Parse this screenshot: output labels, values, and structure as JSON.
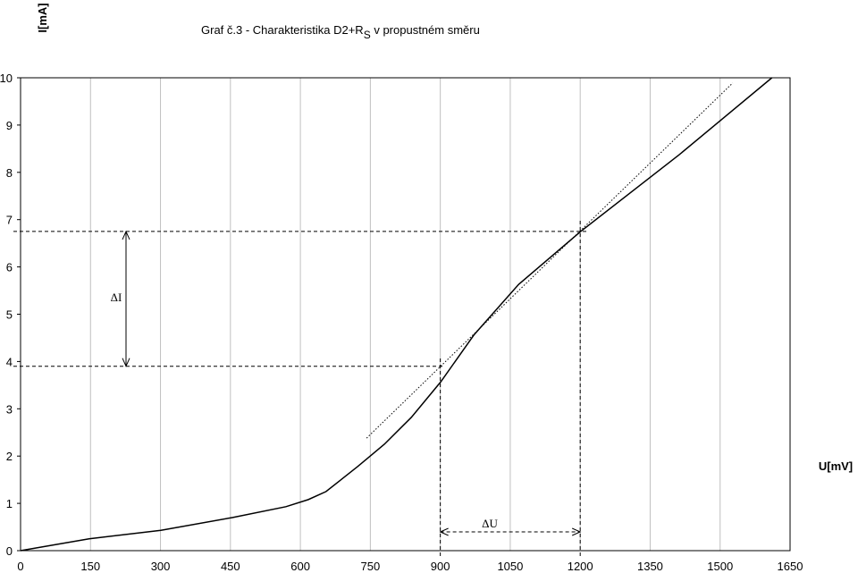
{
  "chart_data": {
    "type": "line",
    "title": [
      "Graf č.3 - Charakteristika D2+R",
      "S",
      " v propustném směru"
    ],
    "y_label": "I[mA]",
    "x_label": "U[mV]",
    "x": [
      0,
      147,
      301,
      454,
      569,
      617,
      655,
      723,
      780,
      838,
      901,
      972,
      1068,
      1201,
      1412,
      1611
    ],
    "series": [
      {
        "color": "#000000",
        "values": [
          0,
          0.25,
          0.43,
          0.7,
          0.93,
          1.08,
          1.25,
          1.78,
          2.25,
          2.82,
          3.57,
          4.56,
          5.63,
          6.75,
          8.37,
          10
        ]
      }
    ],
    "tangent": {
      "x": [
        742,
        1527
      ],
      "values": [
        2.38,
        9.89
      ],
      "color": "#000000"
    },
    "delta_u": {
      "label": "ΔU",
      "from": 900,
      "to": 1200
    },
    "delta_i": {
      "label": "ΔI",
      "from": 3.9,
      "to": 6.75
    },
    "xlim": [
      0,
      1650
    ],
    "ylim": [
      0,
      10
    ],
    "xticks": [
      0,
      150,
      300,
      450,
      600,
      750,
      900,
      1050,
      1200,
      1350,
      1500,
      1650
    ],
    "yticks": [
      0,
      1,
      2,
      3,
      4,
      5,
      6,
      7,
      8,
      9,
      10
    ],
    "grid": true
  }
}
